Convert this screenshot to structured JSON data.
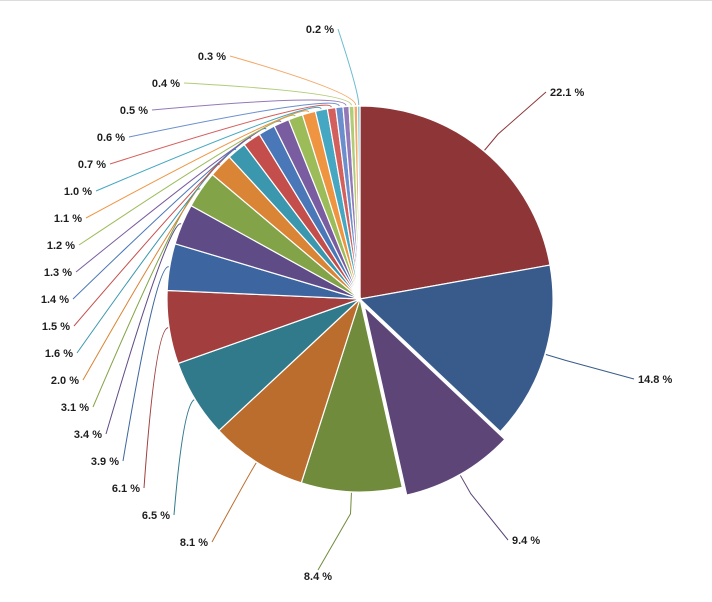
{
  "chart_data": {
    "type": "pie",
    "title": "",
    "value_format": "{v} %",
    "legend": "none",
    "slices": [
      {
        "value": 22.1,
        "label": "22.1 %",
        "color": "#8e3538"
      },
      {
        "value": 14.8,
        "label": "14.8 %",
        "color": "#385b8c"
      },
      {
        "value": 9.4,
        "label": "9.4 %",
        "color": "#5d4578",
        "exploded": true
      },
      {
        "value": 8.4,
        "label": "8.4 %",
        "color": "#6f8b3b"
      },
      {
        "value": 8.1,
        "label": "8.1 %",
        "color": "#bb6d2e"
      },
      {
        "value": 6.5,
        "label": "6.5 %",
        "color": "#307a8c"
      },
      {
        "value": 6.1,
        "label": "6.1 %",
        "color": "#a23e3e"
      },
      {
        "value": 3.9,
        "label": "3.9 %",
        "color": "#3d66a0"
      },
      {
        "value": 3.4,
        "label": "3.4 %",
        "color": "#5f4b86"
      },
      {
        "value": 3.1,
        "label": "3.1 %",
        "color": "#82a347"
      },
      {
        "value": 2.0,
        "label": "2.0 %",
        "color": "#da8436"
      },
      {
        "value": 1.6,
        "label": "1.6 %",
        "color": "#3a97ad"
      },
      {
        "value": 1.5,
        "label": "1.5 %",
        "color": "#c44e4b"
      },
      {
        "value": 1.4,
        "label": "1.4 %",
        "color": "#4a77b8"
      },
      {
        "value": 1.3,
        "label": "1.3 %",
        "color": "#7a5da0"
      },
      {
        "value": 1.2,
        "label": "1.2 %",
        "color": "#9cbc5a"
      },
      {
        "value": 1.1,
        "label": "1.1 %",
        "color": "#ef9541"
      },
      {
        "value": 1.0,
        "label": "1.0 %",
        "color": "#45a7c1"
      },
      {
        "value": 0.7,
        "label": "0.7 %",
        "color": "#d4605e"
      },
      {
        "value": 0.6,
        "label": "0.6 %",
        "color": "#6b8fcd"
      },
      {
        "value": 0.5,
        "label": "0.5 %",
        "color": "#9479b8"
      },
      {
        "value": 0.4,
        "label": "0.4 %",
        "color": "#b1cc78"
      },
      {
        "value": 0.3,
        "label": "0.3 %",
        "color": "#f4a866"
      },
      {
        "value": 0.2,
        "label": "0.2 %",
        "color": "#6bbbd0"
      }
    ]
  }
}
